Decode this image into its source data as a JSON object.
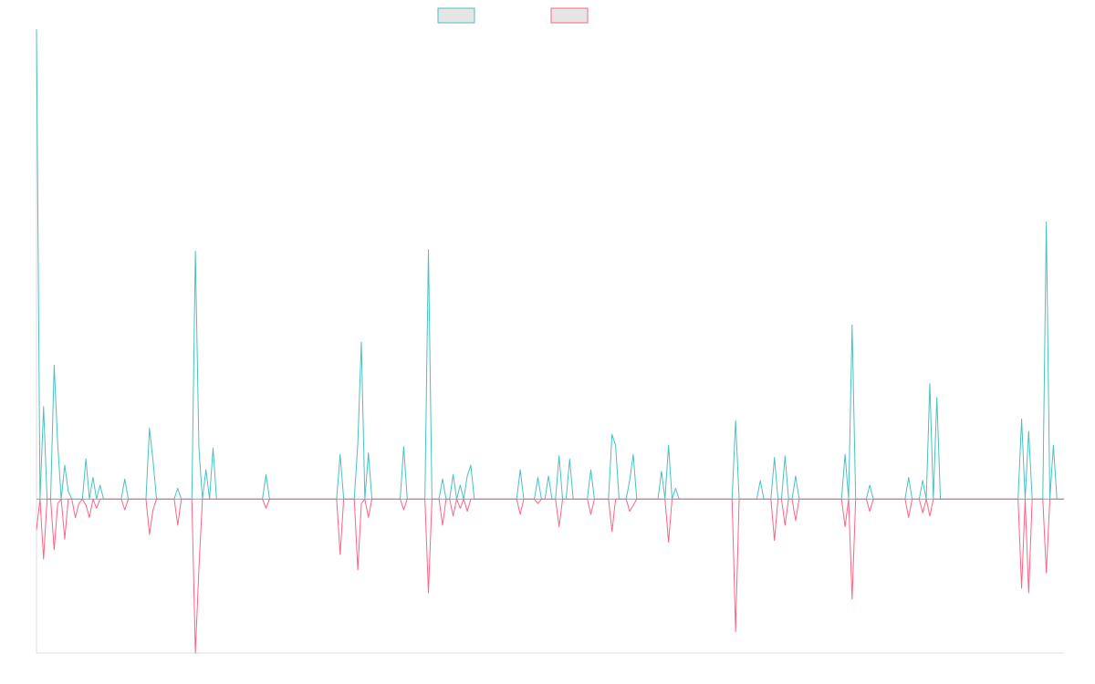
{
  "chart_data": {
    "type": "line",
    "title": "",
    "xlabel": "",
    "ylabel": "",
    "grid": false,
    "legend_position": "top-center",
    "ylim": [
      -100,
      304
    ],
    "colors": {
      "series_1": "#4bc0c0",
      "series_2": "#ff6384",
      "legend_fill": "#e5e5e5",
      "axis": "#dddddd",
      "baseline": "#8f97b8"
    },
    "series": [
      {
        "name": "",
        "values": [
          305,
          0,
          60,
          0,
          0,
          87,
          36,
          0,
          22,
          5,
          0,
          0,
          0,
          0,
          26,
          0,
          14,
          0,
          9,
          0,
          0,
          0,
          0,
          0,
          0,
          13,
          0,
          0,
          0,
          0,
          0,
          0,
          46,
          25,
          0,
          0,
          0,
          0,
          0,
          0,
          7,
          0,
          0,
          0,
          0,
          161,
          33,
          0,
          19,
          0,
          33,
          0,
          0,
          0,
          0,
          0,
          0,
          0,
          0,
          0,
          0,
          0,
          0,
          0,
          0,
          16,
          0,
          0,
          0,
          0,
          0,
          0,
          0,
          0,
          0,
          0,
          0,
          0,
          0,
          0,
          0,
          0,
          0,
          0,
          0,
          0,
          29,
          0,
          0,
          0,
          0,
          36,
          102,
          0,
          30,
          0,
          0,
          0,
          0,
          0,
          0,
          0,
          0,
          0,
          34,
          0,
          0,
          0,
          0,
          0,
          0,
          162,
          0,
          0,
          0,
          13,
          0,
          0,
          16,
          0,
          9,
          0,
          15,
          22,
          0,
          0,
          0,
          0,
          0,
          0,
          0,
          0,
          0,
          0,
          0,
          0,
          0,
          19,
          0,
          0,
          0,
          0,
          14,
          0,
          0,
          15,
          0,
          0,
          28,
          0,
          0,
          26,
          0,
          0,
          0,
          0,
          0,
          19,
          0,
          0,
          0,
          0,
          0,
          42,
          35,
          0,
          0,
          0,
          12,
          29,
          0,
          0,
          0,
          0,
          0,
          0,
          0,
          18,
          0,
          35,
          0,
          7,
          0,
          0,
          0,
          0,
          0,
          0,
          0,
          0,
          0,
          0,
          0,
          0,
          0,
          0,
          0,
          0,
          51,
          0,
          0,
          0,
          0,
          0,
          0,
          12,
          0,
          0,
          0,
          27,
          0,
          0,
          28,
          0,
          0,
          15,
          0,
          0,
          0,
          0,
          0,
          0,
          0,
          0,
          0,
          0,
          0,
          0,
          0,
          29,
          0,
          113,
          0,
          0,
          0,
          0,
          9,
          0,
          0,
          0,
          0,
          0,
          0,
          0,
          0,
          0,
          0,
          14,
          0,
          0,
          0,
          12,
          0,
          75,
          0,
          66,
          0,
          0,
          0,
          0,
          0,
          0,
          0,
          0,
          0,
          0,
          0,
          0,
          0,
          0,
          0,
          0,
          0,
          0,
          0,
          0,
          0,
          0,
          0,
          52,
          0,
          44,
          0,
          0,
          0,
          0,
          180,
          0,
          35,
          0,
          0,
          0
        ]
      },
      {
        "name": "",
        "values": [
          -20,
          0,
          -39,
          0,
          0,
          -33,
          -3,
          0,
          -26,
          0,
          0,
          -12,
          -3,
          0,
          -4,
          -12,
          0,
          -6,
          0,
          0,
          0,
          0,
          0,
          0,
          0,
          -7,
          0,
          0,
          0,
          0,
          0,
          0,
          -23,
          -7,
          0,
          0,
          0,
          0,
          0,
          0,
          -17,
          0,
          0,
          0,
          0,
          -100,
          -45,
          0,
          0,
          0,
          0,
          0,
          0,
          0,
          0,
          0,
          0,
          0,
          0,
          0,
          0,
          0,
          0,
          0,
          0,
          -6,
          0,
          0,
          0,
          0,
          0,
          0,
          0,
          0,
          0,
          0,
          0,
          0,
          0,
          0,
          0,
          0,
          0,
          0,
          0,
          0,
          -36,
          0,
          0,
          0,
          0,
          -46,
          -3,
          0,
          -12,
          0,
          0,
          0,
          0,
          0,
          0,
          0,
          0,
          0,
          -7,
          0,
          0,
          0,
          0,
          0,
          0,
          -61,
          0,
          0,
          0,
          -17,
          0,
          0,
          -11,
          0,
          -6,
          0,
          -8,
          0,
          0,
          0,
          0,
          0,
          0,
          0,
          0,
          0,
          0,
          0,
          0,
          0,
          0,
          -10,
          0,
          0,
          0,
          0,
          -3,
          0,
          0,
          0,
          0,
          0,
          -18,
          0,
          0,
          0,
          0,
          0,
          0,
          0,
          0,
          -10,
          0,
          0,
          0,
          0,
          0,
          -21,
          0,
          0,
          0,
          0,
          -8,
          -4,
          0,
          0,
          0,
          0,
          0,
          0,
          0,
          0,
          0,
          -28,
          0,
          0,
          0,
          0,
          0,
          0,
          0,
          0,
          0,
          0,
          0,
          0,
          0,
          0,
          0,
          0,
          0,
          0,
          -86,
          0,
          0,
          0,
          0,
          0,
          0,
          0,
          0,
          0,
          0,
          -27,
          0,
          0,
          -17,
          0,
          0,
          -14,
          0,
          0,
          0,
          0,
          0,
          0,
          0,
          0,
          0,
          0,
          0,
          0,
          0,
          -18,
          0,
          -65,
          0,
          0,
          0,
          0,
          -8,
          0,
          0,
          0,
          0,
          0,
          0,
          0,
          0,
          0,
          0,
          -12,
          0,
          0,
          0,
          -9,
          0,
          -11,
          0,
          0,
          0,
          0,
          0,
          0,
          0,
          0,
          0,
          0,
          0,
          0,
          0,
          0,
          0,
          0,
          0,
          0,
          0,
          0,
          0,
          0,
          0,
          0,
          0,
          -58,
          0,
          -61,
          0,
          0,
          0,
          0,
          -48,
          0,
          0,
          0,
          0,
          0
        ]
      }
    ]
  }
}
